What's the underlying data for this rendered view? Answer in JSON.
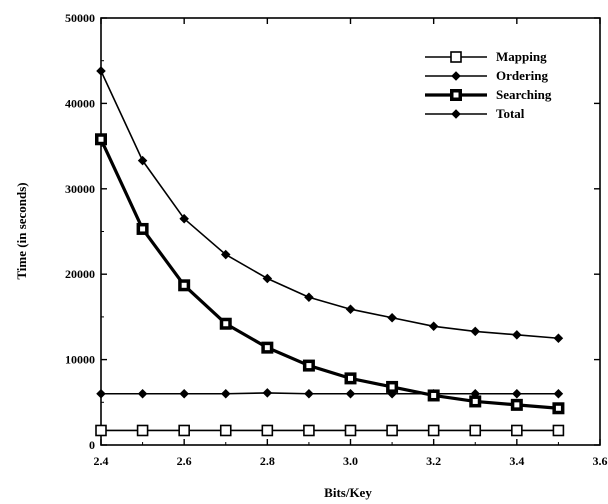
{
  "chart_data": {
    "type": "line",
    "xlabel": "Bits/Key",
    "ylabel": "Time (in seconds)",
    "xlim": [
      2.4,
      3.6
    ],
    "ylim": [
      0,
      50000
    ],
    "x_ticks": [
      "2.4",
      "2.6",
      "2.8",
      "3.0",
      "3.2",
      "3.4",
      "3.6"
    ],
    "y_ticks": [
      "0",
      "10000",
      "20000",
      "30000",
      "40000",
      "50000"
    ],
    "grid": false,
    "legend_position": "top-right",
    "x": [
      2.4,
      2.5,
      2.6,
      2.7,
      2.8,
      2.9,
      3.0,
      3.1,
      3.2,
      3.3,
      3.4,
      3.5
    ],
    "series": [
      {
        "name": "Mapping",
        "marker": "open-square",
        "line_weight": "thin",
        "values": [
          1700,
          1700,
          1700,
          1700,
          1700,
          1700,
          1700,
          1700,
          1700,
          1700,
          1700,
          1700
        ]
      },
      {
        "name": "Ordering",
        "marker": "diamond",
        "line_weight": "thin",
        "values": [
          6000,
          6000,
          6000,
          6000,
          6100,
          6000,
          6000,
          6000,
          6000,
          6000,
          6000,
          6000
        ]
      },
      {
        "name": "Searching",
        "marker": "filled-square",
        "line_weight": "thick",
        "values": [
          35800,
          25300,
          18700,
          14200,
          11400,
          9300,
          7800,
          6800,
          5800,
          5100,
          4700,
          4300
        ]
      },
      {
        "name": "Total",
        "marker": "diamond",
        "line_weight": "thin",
        "values": [
          43800,
          33300,
          26500,
          22300,
          19500,
          17300,
          15900,
          14900,
          13900,
          13300,
          12900,
          12500
        ]
      }
    ]
  }
}
